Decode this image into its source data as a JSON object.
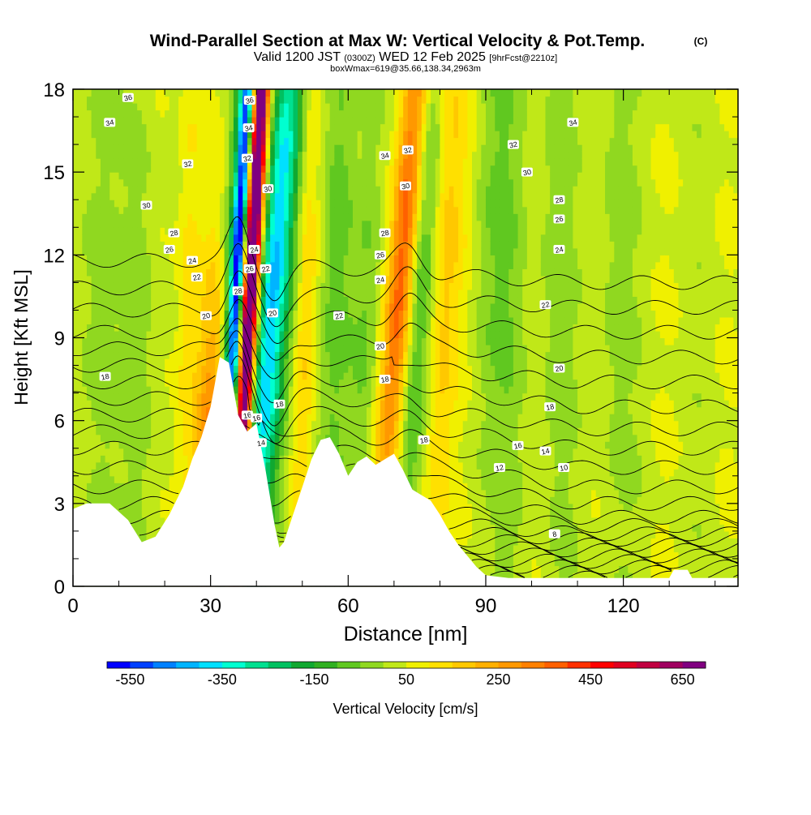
{
  "header": {
    "title": "Wind-Parallel Section at Max W: Vertical Velocity & Pot.Temp.",
    "copyright": "(C)",
    "valid_prefix": "Valid 1200 JST",
    "valid_utc": "(0300Z)",
    "valid_date": "WED 12 Feb 2025",
    "forecast": "[9hrFcst@2210z]",
    "boxwmax": "boxWmax=619@35.66,138.34,2963m"
  },
  "chart_data": {
    "type": "heatmap",
    "xlabel": "Distance [nm]",
    "ylabel": "Height [Kft MSL]",
    "xlim": [
      0,
      145
    ],
    "ylim": [
      0,
      18
    ],
    "x_ticks": [
      "0",
      "30",
      "60",
      "90",
      "120"
    ],
    "y_ticks": [
      "0",
      "3",
      "6",
      "9",
      "12",
      "15",
      "18"
    ],
    "colorbar": {
      "label": "Vertical Velocity [cm/s]",
      "tick_labels": [
        "-550",
        "-350",
        "-150",
        "50",
        "250",
        "450",
        "650"
      ],
      "levels": [
        -600,
        -550,
        -500,
        -450,
        -400,
        -350,
        -300,
        -250,
        -200,
        -150,
        -100,
        -50,
        0,
        50,
        100,
        150,
        200,
        250,
        300,
        350,
        400,
        450,
        500,
        550,
        600,
        650,
        700
      ],
      "colors": [
        "#0000ff",
        "#0040ff",
        "#0080ff",
        "#00b4ff",
        "#00e0ff",
        "#00ffd0",
        "#00e090",
        "#00c060",
        "#10a830",
        "#30b020",
        "#60c820",
        "#90d820",
        "#c0e818",
        "#f0f000",
        "#ffe000",
        "#ffc800",
        "#ffb000",
        "#ff9800",
        "#ff8000",
        "#ff6000",
        "#ff3000",
        "#ff0000",
        "#e00020",
        "#c00040",
        "#a00060",
        "#800080"
      ]
    },
    "terrain": [
      [
        0,
        2.8
      ],
      [
        3,
        3.0
      ],
      [
        8,
        3.0
      ],
      [
        12,
        2.4
      ],
      [
        15,
        1.6
      ],
      [
        18,
        1.8
      ],
      [
        21,
        2.6
      ],
      [
        24,
        3.6
      ],
      [
        26,
        4.6
      ],
      [
        28,
        5.4
      ],
      [
        30,
        6.5
      ],
      [
        32,
        8.3
      ],
      [
        34,
        8.1
      ],
      [
        36,
        6.2
      ],
      [
        38,
        5.6
      ],
      [
        40,
        5.9
      ],
      [
        42,
        4.2
      ],
      [
        44,
        2.2
      ],
      [
        45,
        1.4
      ],
      [
        46,
        1.6
      ],
      [
        48,
        2.6
      ],
      [
        50,
        3.6
      ],
      [
        52,
        4.6
      ],
      [
        54,
        5.3
      ],
      [
        56,
        5.4
      ],
      [
        58,
        4.8
      ],
      [
        60,
        4.0
      ],
      [
        62,
        4.5
      ],
      [
        64,
        4.7
      ],
      [
        66,
        4.4
      ],
      [
        68,
        4.6
      ],
      [
        70,
        4.8
      ],
      [
        72,
        4.2
      ],
      [
        74,
        3.5
      ],
      [
        76,
        3.3
      ],
      [
        78,
        3.1
      ],
      [
        80,
        2.6
      ],
      [
        82,
        2.0
      ],
      [
        84,
        1.5
      ],
      [
        86,
        1.1
      ],
      [
        88,
        0.7
      ],
      [
        90,
        0.4
      ],
      [
        95,
        0.3
      ],
      [
        130,
        0.3
      ],
      [
        131,
        0.6
      ],
      [
        134,
        0.6
      ],
      [
        135,
        0.3
      ],
      [
        145,
        0.3
      ]
    ],
    "w_features": [
      {
        "x": 30,
        "wx": 2.4,
        "z": 4,
        "wz": 5,
        "w": 300,
        "tilt": 0.1
      },
      {
        "x": 36.2,
        "wx": 1.0,
        "z": 12,
        "wz": 9,
        "w": -560,
        "tilt": 0.32
      },
      {
        "x": 35.4,
        "wx": 1.8,
        "z": 12,
        "wz": 10,
        "w": -250,
        "tilt": 0.32
      },
      {
        "x": 39.2,
        "wx": 1.1,
        "z": 12,
        "wz": 9,
        "w": 650,
        "tilt": 0.32
      },
      {
        "x": 38.6,
        "wx": 2.0,
        "z": 12,
        "wz": 10,
        "w": 350,
        "tilt": 0.32
      },
      {
        "x": 43.3,
        "wx": 2.4,
        "z": 11,
        "wz": 9,
        "w": -320,
        "tilt": 0.45
      },
      {
        "x": 45.5,
        "wx": 3.2,
        "z": 11,
        "wz": 10,
        "w": -180,
        "tilt": 0.45
      },
      {
        "x": 51,
        "wx": 2.0,
        "z": 12,
        "wz": 9,
        "w": 160,
        "tilt": 0.15
      },
      {
        "x": 58,
        "wx": 2.5,
        "z": 12,
        "wz": 9,
        "w": -130,
        "tilt": 0.1
      },
      {
        "x": 63,
        "wx": 2.0,
        "z": 8,
        "wz": 6,
        "w": -80,
        "tilt": 0.2
      },
      {
        "x": 72,
        "wx": 2.2,
        "z": 12,
        "wz": 8,
        "w": 350,
        "tilt": 0.5
      },
      {
        "x": 76,
        "wx": 2.4,
        "z": 11,
        "wz": 9,
        "w": -200,
        "tilt": 0.35
      },
      {
        "x": 81,
        "wx": 2.8,
        "z": 12,
        "wz": 9,
        "w": 170,
        "tilt": 0.2
      },
      {
        "x": 90,
        "wx": 2.5,
        "z": 12,
        "wz": 8,
        "w": -60,
        "tilt": 0.1
      },
      {
        "x": 95,
        "wx": 3.0,
        "z": 12,
        "wz": 9,
        "w": -70,
        "tilt": 0
      },
      {
        "x": 105,
        "wx": 3.0,
        "z": 12,
        "wz": 9,
        "w": -60,
        "tilt": 0
      },
      {
        "x": 118,
        "wx": 3.0,
        "z": 12,
        "wz": 9,
        "w": -60,
        "tilt": 0
      },
      {
        "x": 5,
        "wx": 3.0,
        "z": 10,
        "wz": 9,
        "w": -70,
        "tilt": 0
      },
      {
        "x": 15,
        "wx": 2.5,
        "z": 9,
        "wz": 8,
        "w": -70,
        "tilt": 0
      },
      {
        "x": 25,
        "wx": 1.8,
        "z": 10,
        "wz": 8,
        "w": 100,
        "tilt": 0.1
      }
    ],
    "theta_ref": [
      [
        0,
        4
      ],
      [
        3,
        5
      ],
      [
        6,
        8
      ],
      [
        9,
        16
      ],
      [
        12,
        28
      ],
      [
        15,
        38
      ],
      [
        18,
        46
      ]
    ],
    "theta_contours": {
      "levels": [
        2,
        4,
        6,
        8,
        10,
        12,
        14,
        16,
        18,
        20,
        22,
        24,
        26,
        28,
        30,
        32,
        34,
        36,
        38,
        40,
        42,
        44
      ],
      "left_heights": [
        0.3,
        0.55,
        0.8,
        1.1,
        1.4,
        1.7,
        2.1,
        2.5,
        3.0,
        3.6,
        4.3,
        5.0,
        5.6,
        6.2,
        6.8,
        7.4,
        8.0,
        8.6,
        9.2,
        10.0,
        10.8,
        11.8
      ],
      "right_heights": [
        0.3,
        0.5,
        0.7,
        0.9,
        1.1,
        1.3,
        1.5,
        1.7,
        1.9,
        2.2,
        2.5,
        3.0,
        3.6,
        4.3,
        5.0,
        5.7,
        6.5,
        7.4,
        8.3,
        9.2,
        10.1,
        11.0
      ]
    },
    "contour_labels": [
      {
        "text": "36",
        "x": 12,
        "z": 17.7
      },
      {
        "text": "34",
        "x": 8,
        "z": 16.8
      },
      {
        "text": "32",
        "x": 25,
        "z": 15.3
      },
      {
        "text": "30",
        "x": 16,
        "z": 13.8
      },
      {
        "text": "28",
        "x": 22,
        "z": 12.8
      },
      {
        "text": "26",
        "x": 21,
        "z": 12.2
      },
      {
        "text": "24",
        "x": 26,
        "z": 11.8
      },
      {
        "text": "22",
        "x": 27,
        "z": 11.2
      },
      {
        "text": "20",
        "x": 29,
        "z": 9.8
      },
      {
        "text": "18",
        "x": 7,
        "z": 7.6
      },
      {
        "text": "36",
        "x": 38.5,
        "z": 17.6
      },
      {
        "text": "34",
        "x": 38.3,
        "z": 16.6
      },
      {
        "text": "32",
        "x": 38.0,
        "z": 15.5
      },
      {
        "text": "30",
        "x": 42.5,
        "z": 14.4
      },
      {
        "text": "28",
        "x": 36,
        "z": 10.7
      },
      {
        "text": "26",
        "x": 38.5,
        "z": 11.5
      },
      {
        "text": "24",
        "x": 39.5,
        "z": 12.2
      },
      {
        "text": "22",
        "x": 42,
        "z": 11.5
      },
      {
        "text": "20",
        "x": 43.5,
        "z": 9.9
      },
      {
        "text": "18",
        "x": 45,
        "z": 6.6
      },
      {
        "text": "16",
        "x": 38,
        "z": 6.2
      },
      {
        "text": "16",
        "x": 40,
        "z": 6.1
      },
      {
        "text": "14",
        "x": 41,
        "z": 5.2
      },
      {
        "text": "34",
        "x": 68,
        "z": 15.6
      },
      {
        "text": "32",
        "x": 73,
        "z": 15.8
      },
      {
        "text": "30",
        "x": 72.5,
        "z": 14.5
      },
      {
        "text": "28",
        "x": 68,
        "z": 12.8
      },
      {
        "text": "26",
        "x": 67,
        "z": 12.0
      },
      {
        "text": "24",
        "x": 67,
        "z": 11.1
      },
      {
        "text": "22",
        "x": 58,
        "z": 9.8
      },
      {
        "text": "20",
        "x": 67,
        "z": 8.7
      },
      {
        "text": "18",
        "x": 68,
        "z": 7.5
      },
      {
        "text": "18",
        "x": 76.5,
        "z": 5.3
      },
      {
        "text": "32",
        "x": 96,
        "z": 16.0
      },
      {
        "text": "30",
        "x": 99,
        "z": 15.0
      },
      {
        "text": "28",
        "x": 106,
        "z": 14.0
      },
      {
        "text": "26",
        "x": 106,
        "z": 13.3
      },
      {
        "text": "24",
        "x": 106,
        "z": 12.2
      },
      {
        "text": "22",
        "x": 103,
        "z": 10.2
      },
      {
        "text": "20",
        "x": 106,
        "z": 7.9
      },
      {
        "text": "18",
        "x": 104,
        "z": 6.5
      },
      {
        "text": "16",
        "x": 97,
        "z": 5.1
      },
      {
        "text": "14",
        "x": 103,
        "z": 4.9
      },
      {
        "text": "12",
        "x": 93,
        "z": 4.3
      },
      {
        "text": "10",
        "x": 107,
        "z": 4.3
      },
      {
        "text": "34",
        "x": 109,
        "z": 16.8
      },
      {
        "text": "8",
        "x": 105,
        "z": 1.9
      }
    ]
  }
}
